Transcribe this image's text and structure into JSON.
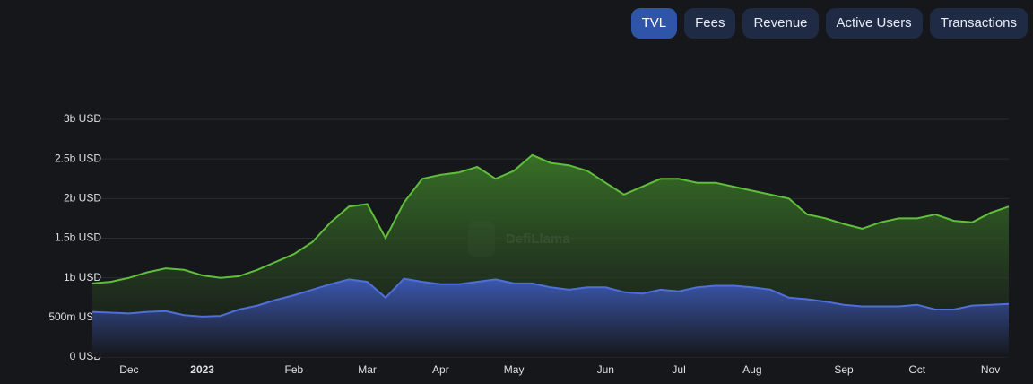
{
  "tabs": {
    "items": [
      "TVL",
      "Fees",
      "Revenue",
      "Active Users",
      "Transactions"
    ],
    "active": 0
  },
  "chart_data": {
    "type": "area",
    "watermark": "DefiLlama",
    "categories": [
      null,
      null,
      "Dec",
      null,
      null,
      null,
      "2023",
      null,
      null,
      null,
      null,
      "Feb",
      null,
      null,
      null,
      "Mar",
      null,
      null,
      null,
      "Apr",
      null,
      null,
      null,
      "May",
      null,
      null,
      null,
      null,
      "Jun",
      null,
      null,
      null,
      "Jul",
      null,
      null,
      null,
      "Aug",
      null,
      null,
      null,
      null,
      "Sep",
      null,
      null,
      null,
      "Oct",
      null,
      null,
      null,
      "Nov",
      null
    ],
    "series": [
      {
        "color": "#5fbf3a",
        "values": [
          930000000.0,
          950000000.0,
          1000000000.0,
          1070000000.0,
          1120000000.0,
          1100000000.0,
          1030000000.0,
          1000000000.0,
          1020000000.0,
          1100000000.0,
          1200000000.0,
          1300000000.0,
          1450000000.0,
          1700000000.0,
          1900000000.0,
          1930000000.0,
          1500000000.0,
          1950000000.0,
          2250000000.0,
          2300000000.0,
          2330000000.0,
          2400000000.0,
          2250000000.0,
          2350000000.0,
          2550000000.0,
          2450000000.0,
          2420000000.0,
          2350000000.0,
          2200000000.0,
          2050000000.0,
          2150000000.0,
          2250000000.0,
          2250000000.0,
          2200000000.0,
          2200000000.0,
          2150000000.0,
          2100000000.0,
          2050000000.0,
          2000000000.0,
          1800000000.0,
          1750000000.0,
          1680000000.0,
          1620000000.0,
          1700000000.0,
          1750000000.0,
          1750000000.0,
          1800000000.0,
          1720000000.0,
          1700000000.0,
          1820000000.0,
          1900000000.0
        ]
      },
      {
        "color": "#4f6fd8",
        "values": [
          570000000.0,
          560000000.0,
          550000000.0,
          570000000.0,
          580000000.0,
          530000000.0,
          510000000.0,
          520000000.0,
          600000000.0,
          650000000.0,
          720000000.0,
          780000000.0,
          850000000.0,
          920000000.0,
          980000000.0,
          950000000.0,
          750000000.0,
          990000000.0,
          950000000.0,
          920000000.0,
          920000000.0,
          950000000.0,
          980000000.0,
          930000000.0,
          930000000.0,
          880000000.0,
          850000000.0,
          880000000.0,
          880000000.0,
          820000000.0,
          800000000.0,
          850000000.0,
          830000000.0,
          880000000.0,
          900000000.0,
          900000000.0,
          880000000.0,
          850000000.0,
          750000000.0,
          730000000.0,
          700000000.0,
          660000000.0,
          640000000.0,
          640000000.0,
          640000000.0,
          660000000.0,
          600000000.0,
          600000000.0,
          650000000.0,
          660000000.0,
          670000000.0
        ]
      }
    ],
    "ylim": [
      0,
      3000000000
    ],
    "yticks": [
      {
        "value": 0,
        "label": "0 USD"
      },
      {
        "value": 500000000,
        "label": "500m USD"
      },
      {
        "value": 1000000000,
        "label": "1b USD"
      },
      {
        "value": 1500000000,
        "label": "1.5b USD"
      },
      {
        "value": 2000000000,
        "label": "2b USD"
      },
      {
        "value": 2500000000,
        "label": "2.5b USD"
      },
      {
        "value": 3000000000,
        "label": "3b USD"
      }
    ],
    "grid": true
  }
}
